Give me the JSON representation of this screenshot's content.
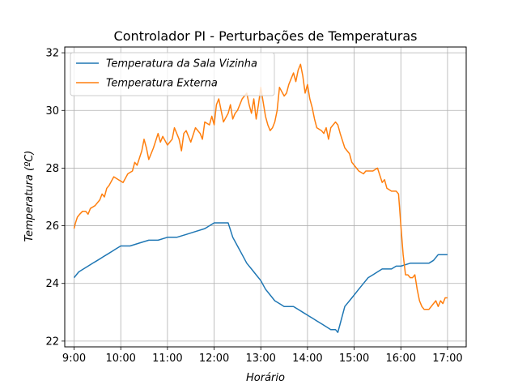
{
  "chart_data": {
    "type": "line",
    "title": "Controlador PI - Perturbações de Temperaturas",
    "xlabel": "Horário",
    "ylabel": "Temperatura (ºC)",
    "xlim": [
      8.8,
      17.4
    ],
    "ylim": [
      21.8,
      32.2
    ],
    "xticks": [
      {
        "value": 9,
        "label": "9:00"
      },
      {
        "value": 10,
        "label": "10:00"
      },
      {
        "value": 11,
        "label": "11:00"
      },
      {
        "value": 12,
        "label": "12:00"
      },
      {
        "value": 13,
        "label": "13:00"
      },
      {
        "value": 14,
        "label": "14:00"
      },
      {
        "value": 15,
        "label": "15:00"
      },
      {
        "value": 16,
        "label": "16:00"
      },
      {
        "value": 17,
        "label": "17:00"
      }
    ],
    "yticks": [
      {
        "value": 22,
        "label": "22"
      },
      {
        "value": 24,
        "label": "24"
      },
      {
        "value": 26,
        "label": "26"
      },
      {
        "value": 28,
        "label": "28"
      },
      {
        "value": 30,
        "label": "30"
      },
      {
        "value": 32,
        "label": "32"
      }
    ],
    "grid": true,
    "legend_position": "top-left",
    "series": [
      {
        "name": "Temperatura da Sala Vizinha",
        "color": "#1f77b4",
        "x": [
          9.0,
          9.1,
          9.2,
          9.3,
          9.4,
          9.5,
          9.6,
          9.7,
          9.8,
          9.9,
          10.0,
          10.2,
          10.4,
          10.6,
          10.8,
          11.0,
          11.2,
          11.4,
          11.6,
          11.8,
          12.0,
          12.2,
          12.3,
          12.4,
          12.5,
          12.6,
          12.7,
          12.8,
          12.9,
          13.0,
          13.1,
          13.2,
          13.3,
          13.4,
          13.5,
          13.6,
          13.7,
          13.8,
          13.9,
          14.0,
          14.1,
          14.2,
          14.3,
          14.4,
          14.5,
          14.6,
          14.65,
          14.7,
          14.8,
          14.9,
          15.0,
          15.1,
          15.2,
          15.3,
          15.4,
          15.5,
          15.6,
          15.7,
          15.8,
          15.9,
          16.0,
          16.2,
          16.4,
          16.6,
          16.7,
          16.8,
          17.0
        ],
        "y": [
          24.2,
          24.4,
          24.5,
          24.6,
          24.7,
          24.8,
          24.9,
          25.0,
          25.1,
          25.2,
          25.3,
          25.3,
          25.4,
          25.5,
          25.5,
          25.6,
          25.6,
          25.7,
          25.8,
          25.9,
          26.1,
          26.1,
          26.1,
          25.6,
          25.3,
          25.0,
          24.7,
          24.5,
          24.3,
          24.1,
          23.8,
          23.6,
          23.4,
          23.3,
          23.2,
          23.2,
          23.2,
          23.1,
          23.0,
          22.9,
          22.8,
          22.7,
          22.6,
          22.5,
          22.4,
          22.4,
          22.3,
          22.6,
          23.2,
          23.4,
          23.6,
          23.8,
          24.0,
          24.2,
          24.3,
          24.4,
          24.5,
          24.5,
          24.5,
          24.6,
          24.6,
          24.7,
          24.7,
          24.7,
          24.8,
          25.0,
          25.0
        ]
      },
      {
        "name": "Temperatura Externa",
        "color": "#ff7f0e",
        "x": [
          9.0,
          9.03,
          9.07,
          9.12,
          9.18,
          9.25,
          9.3,
          9.35,
          9.45,
          9.55,
          9.6,
          9.65,
          9.7,
          9.75,
          9.85,
          9.95,
          10.05,
          10.15,
          10.25,
          10.3,
          10.35,
          10.45,
          10.5,
          10.55,
          10.6,
          10.7,
          10.8,
          10.85,
          10.9,
          11.0,
          11.05,
          11.1,
          11.15,
          11.25,
          11.3,
          11.35,
          11.4,
          11.5,
          11.6,
          11.7,
          11.75,
          11.8,
          11.9,
          11.95,
          12.0,
          12.05,
          12.1,
          12.2,
          12.3,
          12.35,
          12.4,
          12.45,
          12.5,
          12.55,
          12.6,
          12.7,
          12.75,
          12.8,
          12.85,
          12.9,
          12.95,
          13.0,
          13.05,
          13.1,
          13.15,
          13.2,
          13.25,
          13.3,
          13.35,
          13.4,
          13.5,
          13.55,
          13.6,
          13.65,
          13.7,
          13.75,
          13.8,
          13.85,
          13.9,
          13.95,
          14.0,
          14.05,
          14.1,
          14.15,
          14.2,
          14.3,
          14.35,
          14.4,
          14.45,
          14.5,
          14.6,
          14.65,
          14.7,
          14.8,
          14.9,
          14.95,
          15.0,
          15.1,
          15.2,
          15.25,
          15.3,
          15.4,
          15.5,
          15.6,
          15.65,
          15.7,
          15.8,
          15.85,
          15.9,
          15.95,
          16.0,
          16.05,
          16.1,
          16.15,
          16.2,
          16.25,
          16.3,
          16.35,
          16.4,
          16.45,
          16.5,
          16.6,
          16.7,
          16.75,
          16.8,
          16.85,
          16.9,
          16.95,
          17.0
        ],
        "y": [
          25.9,
          26.1,
          26.3,
          26.4,
          26.5,
          26.5,
          26.4,
          26.6,
          26.7,
          26.9,
          27.1,
          27.0,
          27.3,
          27.4,
          27.7,
          27.6,
          27.5,
          27.8,
          27.9,
          28.2,
          28.1,
          28.6,
          29.0,
          28.7,
          28.3,
          28.7,
          29.2,
          28.9,
          29.1,
          28.8,
          28.9,
          29.0,
          29.4,
          29.0,
          28.6,
          29.2,
          29.3,
          28.9,
          29.4,
          29.2,
          29.0,
          29.6,
          29.5,
          29.8,
          29.5,
          30.2,
          30.4,
          29.6,
          29.9,
          30.2,
          29.7,
          29.9,
          30.0,
          30.2,
          30.4,
          30.6,
          30.2,
          29.9,
          30.4,
          29.7,
          30.2,
          30.8,
          30.3,
          29.8,
          29.5,
          29.3,
          29.4,
          29.6,
          30.0,
          30.8,
          30.5,
          30.6,
          30.9,
          31.1,
          31.3,
          31.0,
          31.4,
          31.6,
          31.2,
          30.6,
          30.9,
          30.4,
          30.1,
          29.7,
          29.4,
          29.3,
          29.2,
          29.4,
          29.0,
          29.4,
          29.6,
          29.5,
          29.2,
          28.7,
          28.5,
          28.2,
          28.1,
          27.9,
          27.8,
          27.9,
          27.9,
          27.9,
          28.0,
          27.5,
          27.6,
          27.3,
          27.2,
          27.2,
          27.2,
          27.1,
          26.0,
          25.0,
          24.3,
          24.3,
          24.2,
          24.2,
          24.3,
          23.8,
          23.4,
          23.2,
          23.1,
          23.1,
          23.3,
          23.4,
          23.2,
          23.4,
          23.3,
          23.5,
          23.5
        ]
      }
    ]
  }
}
